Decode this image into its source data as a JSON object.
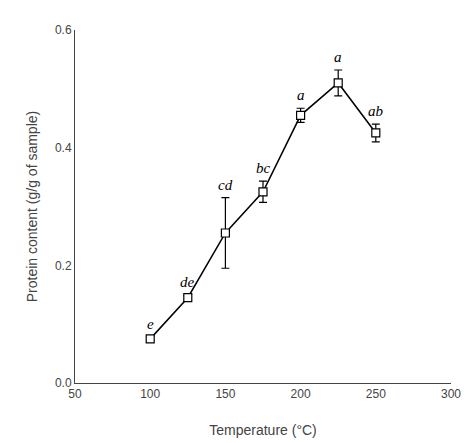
{
  "chart_data": {
    "type": "line",
    "xlabel": "Temperature (°C)",
    "ylabel": "Protein content (g/g of sample)",
    "x": [
      100,
      125,
      150,
      175,
      200,
      225,
      250
    ],
    "series": [
      {
        "values": [
          0.075,
          0.145,
          0.255,
          0.325,
          0.455,
          0.51,
          0.425
        ],
        "errors": [
          0.004,
          0.004,
          0.06,
          0.018,
          0.012,
          0.022,
          0.015
        ],
        "color": "black",
        "marker": "square",
        "line_style": "solid"
      }
    ],
    "annotations": [
      "e",
      "de",
      "cd",
      "bc",
      "a",
      "a",
      "ab"
    ],
    "xlim": [
      50,
      300
    ],
    "xticks": [
      50,
      100,
      150,
      200,
      250,
      300
    ],
    "ylim": [
      0,
      0.6
    ],
    "yticks": [
      {
        "value": 0,
        "label": "0.0"
      },
      0.2,
      0.4,
      0.6
    ],
    "grid": false
  }
}
